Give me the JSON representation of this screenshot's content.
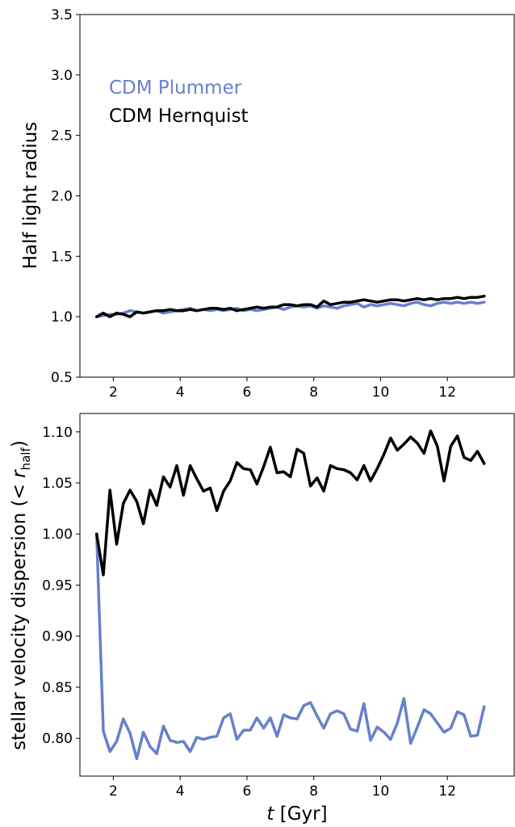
{
  "chart_data": [
    {
      "type": "line",
      "ylabel": "Half light radius",
      "xlim": [
        1.0,
        14.0
      ],
      "ylim": [
        0.5,
        3.5
      ],
      "xticks": [
        2,
        4,
        6,
        8,
        10,
        12
      ],
      "yticks": [
        "0.5",
        "1.0",
        "1.5",
        "2.0",
        "2.5",
        "3.0",
        "3.5"
      ],
      "legend_position": "upper-left",
      "x": [
        1.5,
        1.7,
        1.9,
        2.1,
        2.3,
        2.5,
        2.7,
        2.9,
        3.1,
        3.3,
        3.5,
        3.7,
        3.9,
        4.1,
        4.3,
        4.5,
        4.7,
        4.9,
        5.1,
        5.3,
        5.5,
        5.7,
        5.9,
        6.1,
        6.3,
        6.5,
        6.7,
        6.9,
        7.1,
        7.3,
        7.5,
        7.7,
        7.9,
        8.1,
        8.3,
        8.5,
        8.7,
        8.9,
        9.1,
        9.3,
        9.5,
        9.7,
        9.9,
        10.1,
        10.3,
        10.5,
        10.7,
        10.9,
        11.1,
        11.3,
        11.5,
        11.7,
        11.9,
        12.1,
        12.3,
        12.5,
        12.7,
        12.9,
        13.1
      ],
      "series": [
        {
          "name": "CDM Plummer",
          "color": "#6680cc",
          "values": [
            1.0,
            1.01,
            1.02,
            1.02,
            1.03,
            1.05,
            1.04,
            1.03,
            1.04,
            1.05,
            1.03,
            1.04,
            1.05,
            1.06,
            1.07,
            1.05,
            1.06,
            1.05,
            1.06,
            1.05,
            1.06,
            1.07,
            1.05,
            1.06,
            1.05,
            1.06,
            1.07,
            1.08,
            1.06,
            1.08,
            1.09,
            1.08,
            1.09,
            1.07,
            1.09,
            1.08,
            1.07,
            1.09,
            1.1,
            1.11,
            1.08,
            1.1,
            1.09,
            1.1,
            1.11,
            1.1,
            1.09,
            1.11,
            1.12,
            1.1,
            1.09,
            1.11,
            1.12,
            1.11,
            1.12,
            1.11,
            1.12,
            1.11,
            1.12
          ]
        },
        {
          "name": "CDM Hernquist",
          "color": "#000000",
          "values": [
            1.0,
            1.03,
            1.0,
            1.03,
            1.02,
            1.0,
            1.04,
            1.03,
            1.04,
            1.05,
            1.05,
            1.06,
            1.05,
            1.05,
            1.06,
            1.05,
            1.06,
            1.07,
            1.07,
            1.06,
            1.07,
            1.05,
            1.06,
            1.07,
            1.08,
            1.07,
            1.08,
            1.08,
            1.1,
            1.1,
            1.09,
            1.1,
            1.1,
            1.08,
            1.13,
            1.1,
            1.11,
            1.12,
            1.12,
            1.13,
            1.14,
            1.13,
            1.12,
            1.13,
            1.14,
            1.14,
            1.13,
            1.14,
            1.15,
            1.14,
            1.15,
            1.14,
            1.15,
            1.15,
            1.16,
            1.15,
            1.16,
            1.16,
            1.17
          ]
        }
      ]
    },
    {
      "type": "line",
      "xlabel": "t [Gyr]",
      "ylabel": "stellar velocity dispersion (< r_half)",
      "xlim": [
        1.0,
        14.0
      ],
      "ylim": [
        0.763,
        1.118
      ],
      "xticks": [
        2,
        4,
        6,
        8,
        10,
        12
      ],
      "yticks": [
        "0.80",
        "0.85",
        "0.90",
        "0.95",
        "1.00",
        "1.05",
        "1.10"
      ],
      "x": [
        1.5,
        1.7,
        1.9,
        2.1,
        2.3,
        2.5,
        2.7,
        2.9,
        3.1,
        3.3,
        3.5,
        3.7,
        3.9,
        4.1,
        4.3,
        4.5,
        4.7,
        4.9,
        5.1,
        5.3,
        5.5,
        5.7,
        5.9,
        6.1,
        6.3,
        6.5,
        6.7,
        6.9,
        7.1,
        7.3,
        7.5,
        7.7,
        7.9,
        8.1,
        8.3,
        8.5,
        8.7,
        8.9,
        9.1,
        9.3,
        9.5,
        9.7,
        9.9,
        10.1,
        10.3,
        10.5,
        10.7,
        10.9,
        11.1,
        11.3,
        11.5,
        11.7,
        11.9,
        12.1,
        12.3,
        12.5,
        12.7,
        12.9,
        13.1
      ],
      "series": [
        {
          "name": "CDM Plummer",
          "color": "#6680cc",
          "values": [
            1.0,
            0.807,
            0.787,
            0.797,
            0.819,
            0.805,
            0.78,
            0.806,
            0.792,
            0.785,
            0.812,
            0.798,
            0.796,
            0.797,
            0.787,
            0.801,
            0.799,
            0.801,
            0.802,
            0.82,
            0.824,
            0.799,
            0.808,
            0.808,
            0.82,
            0.81,
            0.82,
            0.802,
            0.823,
            0.82,
            0.819,
            0.832,
            0.835,
            0.822,
            0.81,
            0.824,
            0.827,
            0.824,
            0.809,
            0.807,
            0.834,
            0.798,
            0.811,
            0.806,
            0.799,
            0.815,
            0.839,
            0.795,
            0.811,
            0.828,
            0.824,
            0.815,
            0.806,
            0.81,
            0.826,
            0.823,
            0.802,
            0.803,
            0.831
          ]
        },
        {
          "name": "CDM Hernquist",
          "color": "#000000",
          "values": [
            1.0,
            0.96,
            1.043,
            0.99,
            1.03,
            1.043,
            1.032,
            1.01,
            1.043,
            1.028,
            1.056,
            1.046,
            1.067,
            1.038,
            1.067,
            1.054,
            1.042,
            1.045,
            1.023,
            1.042,
            1.052,
            1.07,
            1.064,
            1.063,
            1.049,
            1.066,
            1.085,
            1.06,
            1.061,
            1.056,
            1.083,
            1.079,
            1.047,
            1.055,
            1.042,
            1.067,
            1.064,
            1.063,
            1.06,
            1.053,
            1.067,
            1.052,
            1.064,
            1.078,
            1.094,
            1.082,
            1.088,
            1.095,
            1.089,
            1.079,
            1.101,
            1.086,
            1.052,
            1.086,
            1.096,
            1.075,
            1.072,
            1.081,
            1.069
          ]
        }
      ]
    }
  ]
}
